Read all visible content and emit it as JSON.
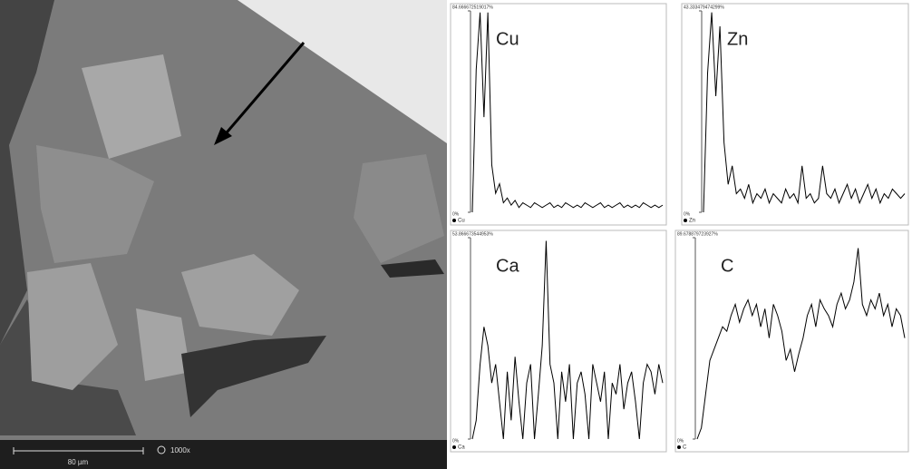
{
  "image": {
    "scale_bar": "80 µm",
    "magnification": "1000x"
  },
  "chart_data": [
    {
      "type": "line",
      "title": "Cu",
      "ylim": [
        0,
        84.666672519017
      ],
      "yticks": [
        {
          "value": 0,
          "label": "0%"
        },
        {
          "value": 84.666672519017,
          "label": "84.666672519017%"
        }
      ],
      "series": [
        {
          "name": "Cu",
          "color": "#000000",
          "values": [
            0,
            60,
            84,
            40,
            84,
            20,
            8,
            12,
            4,
            6,
            3,
            5,
            2,
            4,
            3,
            2,
            4,
            3,
            2,
            3,
            4,
            2,
            3,
            2,
            4,
            3,
            2,
            3,
            2,
            4,
            3,
            2,
            3,
            4,
            2,
            3,
            2,
            3,
            4,
            2,
            3,
            2,
            3,
            2,
            4,
            3,
            2,
            3,
            2,
            3
          ]
        }
      ]
    },
    {
      "type": "line",
      "title": "Zn",
      "ylim": [
        0,
        43.333479474299
      ],
      "yticks": [
        {
          "value": 0,
          "label": "0%"
        },
        {
          "value": 43.333479474299,
          "label": "43.333479474299%"
        }
      ],
      "series": [
        {
          "name": "Zn",
          "color": "#000000",
          "values": [
            0,
            30,
            43,
            25,
            40,
            15,
            6,
            10,
            4,
            5,
            3,
            6,
            2,
            4,
            3,
            5,
            2,
            4,
            3,
            2,
            5,
            3,
            4,
            2,
            10,
            3,
            4,
            2,
            3,
            10,
            4,
            3,
            5,
            2,
            4,
            6,
            3,
            5,
            2,
            4,
            6,
            3,
            5,
            2,
            4,
            3,
            5,
            4,
            3,
            4
          ]
        }
      ]
    },
    {
      "type": "line",
      "title": "Ca",
      "ylim": [
        0,
        53.866673544953
      ],
      "yticks": [
        {
          "value": 0,
          "label": "0%"
        },
        {
          "value": 53.866673544953,
          "label": "53.866673544953%"
        }
      ],
      "series": [
        {
          "name": "Ca",
          "color": "#000000",
          "values": [
            0,
            5,
            20,
            30,
            25,
            15,
            20,
            10,
            0,
            18,
            5,
            22,
            10,
            0,
            15,
            20,
            0,
            12,
            25,
            53,
            20,
            15,
            0,
            18,
            10,
            20,
            0,
            15,
            18,
            12,
            0,
            20,
            15,
            10,
            18,
            0,
            15,
            12,
            20,
            8,
            15,
            18,
            10,
            0,
            15,
            20,
            18,
            12,
            20,
            15
          ]
        }
      ]
    },
    {
      "type": "line",
      "title": "C",
      "ylim": [
        0,
        89.678879723927
      ],
      "yticks": [
        {
          "value": 0,
          "label": "0%"
        },
        {
          "value": 89.678879723927,
          "label": "89.678879723927%"
        }
      ],
      "series": [
        {
          "name": "C",
          "color": "#000000",
          "values": [
            0,
            5,
            20,
            35,
            40,
            45,
            50,
            48,
            55,
            60,
            52,
            58,
            62,
            55,
            60,
            50,
            58,
            45,
            60,
            55,
            48,
            35,
            40,
            30,
            38,
            45,
            55,
            60,
            50,
            62,
            58,
            55,
            50,
            60,
            65,
            58,
            62,
            70,
            85,
            60,
            55,
            62,
            58,
            65,
            55,
            60,
            50,
            58,
            55,
            45
          ]
        }
      ]
    }
  ]
}
